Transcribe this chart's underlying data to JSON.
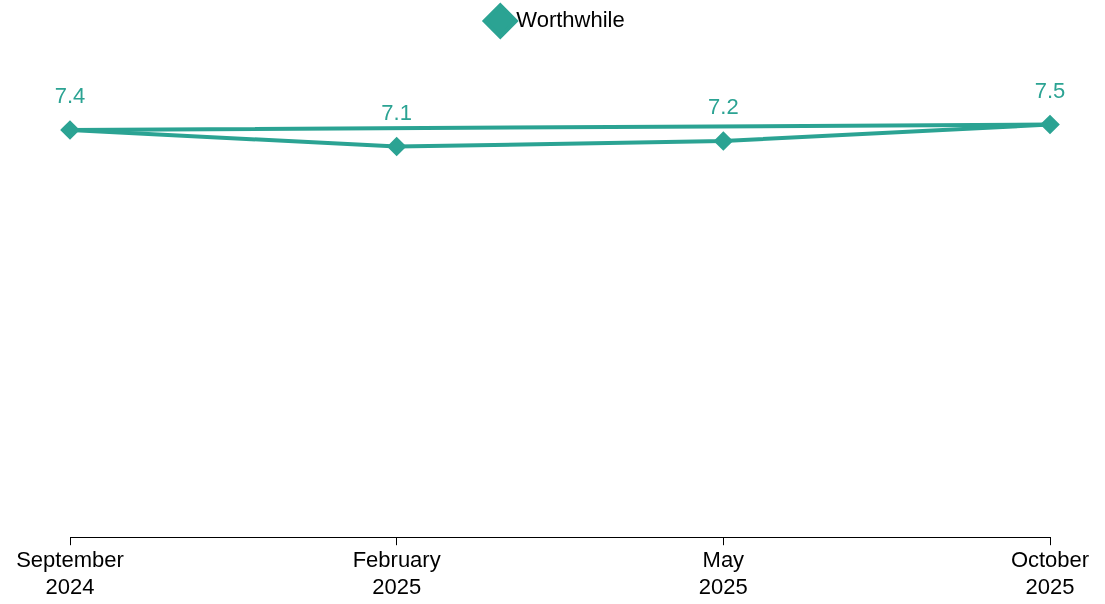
{
  "chart_data": {
    "type": "line",
    "categories": [
      "September 2024",
      "February 2025",
      "May 2025",
      "October 2025"
    ],
    "series": [
      {
        "name": "Worthwhile",
        "color": "#2ba393",
        "values": [
          7.4,
          7.1,
          7.2,
          7.5
        ],
        "value_labels": [
          "7.4",
          "7.1",
          "7.2",
          "7.5"
        ]
      },
      {
        "color": "#2ba393",
        "x": [
          "September 2024",
          "October 2025"
        ],
        "values": [
          7.4,
          7.5
        ],
        "marker": "none"
      }
    ],
    "legend": "top",
    "marker": "diamond",
    "line_style": "solid",
    "grid": false
  }
}
